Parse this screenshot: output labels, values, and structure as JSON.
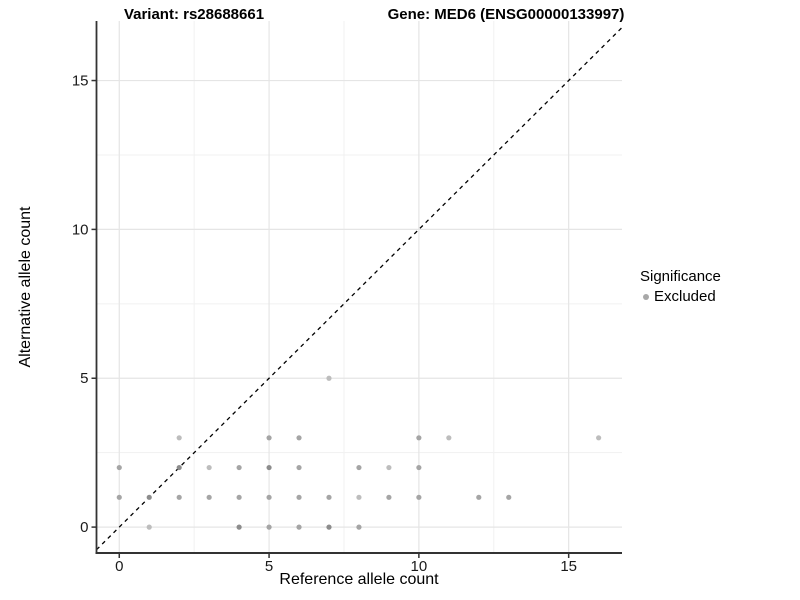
{
  "titles": {
    "left": "Variant: rs28688661",
    "right": "Gene: MED6 (ENSG00000133997)"
  },
  "chart_data": {
    "type": "scatter",
    "xlabel": "Reference allele count",
    "ylabel": "Alternative allele count",
    "xlim": [
      -0.76,
      16.78
    ],
    "ylim": [
      -0.87,
      17.0
    ],
    "xticks": [
      0,
      5,
      10,
      15
    ],
    "yticks": [
      0,
      5,
      10,
      15
    ],
    "xticks_minor": [
      2.5,
      7.5,
      12.5
    ],
    "yticks_minor": [
      2.5,
      7.5,
      12.5
    ],
    "grid": true,
    "legend_position": "right",
    "identity_line": {
      "slope": 1,
      "intercept": 0,
      "style": "dashed",
      "color": "#000000"
    },
    "point_colors": {
      "light": "#bdbdbd",
      "medium": "#a5a5a5",
      "dark": "#8c8c8c"
    },
    "legend": {
      "title": "Significance",
      "items": [
        {
          "label": "Excluded",
          "color": "#a8a8a8"
        }
      ]
    },
    "series": [
      {
        "name": "Excluded",
        "points": [
          {
            "x": 1,
            "y": 0,
            "shade": "light"
          },
          {
            "x": 4,
            "y": 0,
            "shade": "dark"
          },
          {
            "x": 5,
            "y": 0,
            "shade": "medium"
          },
          {
            "x": 6,
            "y": 0,
            "shade": "medium"
          },
          {
            "x": 7,
            "y": 0,
            "shade": "dark"
          },
          {
            "x": 8,
            "y": 0,
            "shade": "medium"
          },
          {
            "x": 0,
            "y": 1,
            "shade": "medium"
          },
          {
            "x": 1,
            "y": 1,
            "shade": "dark"
          },
          {
            "x": 2,
            "y": 1,
            "shade": "medium"
          },
          {
            "x": 3,
            "y": 1,
            "shade": "medium"
          },
          {
            "x": 4,
            "y": 1,
            "shade": "medium"
          },
          {
            "x": 5,
            "y": 1,
            "shade": "medium"
          },
          {
            "x": 6,
            "y": 1,
            "shade": "medium"
          },
          {
            "x": 7,
            "y": 1,
            "shade": "medium"
          },
          {
            "x": 8,
            "y": 1,
            "shade": "light"
          },
          {
            "x": 9,
            "y": 1,
            "shade": "medium"
          },
          {
            "x": 10,
            "y": 1,
            "shade": "medium"
          },
          {
            "x": 12,
            "y": 1,
            "shade": "medium"
          },
          {
            "x": 13,
            "y": 1,
            "shade": "medium"
          },
          {
            "x": 0,
            "y": 2,
            "shade": "medium"
          },
          {
            "x": 2,
            "y": 2,
            "shade": "dark"
          },
          {
            "x": 3,
            "y": 2,
            "shade": "light"
          },
          {
            "x": 4,
            "y": 2,
            "shade": "medium"
          },
          {
            "x": 5,
            "y": 2,
            "shade": "dark"
          },
          {
            "x": 6,
            "y": 2,
            "shade": "medium"
          },
          {
            "x": 8,
            "y": 2,
            "shade": "medium"
          },
          {
            "x": 9,
            "y": 2,
            "shade": "light"
          },
          {
            "x": 10,
            "y": 2,
            "shade": "medium"
          },
          {
            "x": 2,
            "y": 3,
            "shade": "light"
          },
          {
            "x": 5,
            "y": 3,
            "shade": "medium"
          },
          {
            "x": 6,
            "y": 3,
            "shade": "medium"
          },
          {
            "x": 10,
            "y": 3,
            "shade": "medium"
          },
          {
            "x": 11,
            "y": 3,
            "shade": "light"
          },
          {
            "x": 16,
            "y": 3,
            "shade": "light"
          },
          {
            "x": 7,
            "y": 5,
            "shade": "light"
          }
        ]
      }
    ]
  },
  "colors": {
    "background": "#ffffff",
    "axis": "#333333",
    "grid_major": "#e5e5e5",
    "grid_minor": "#f1f1f1",
    "tick_label": "#1a1a1a"
  }
}
